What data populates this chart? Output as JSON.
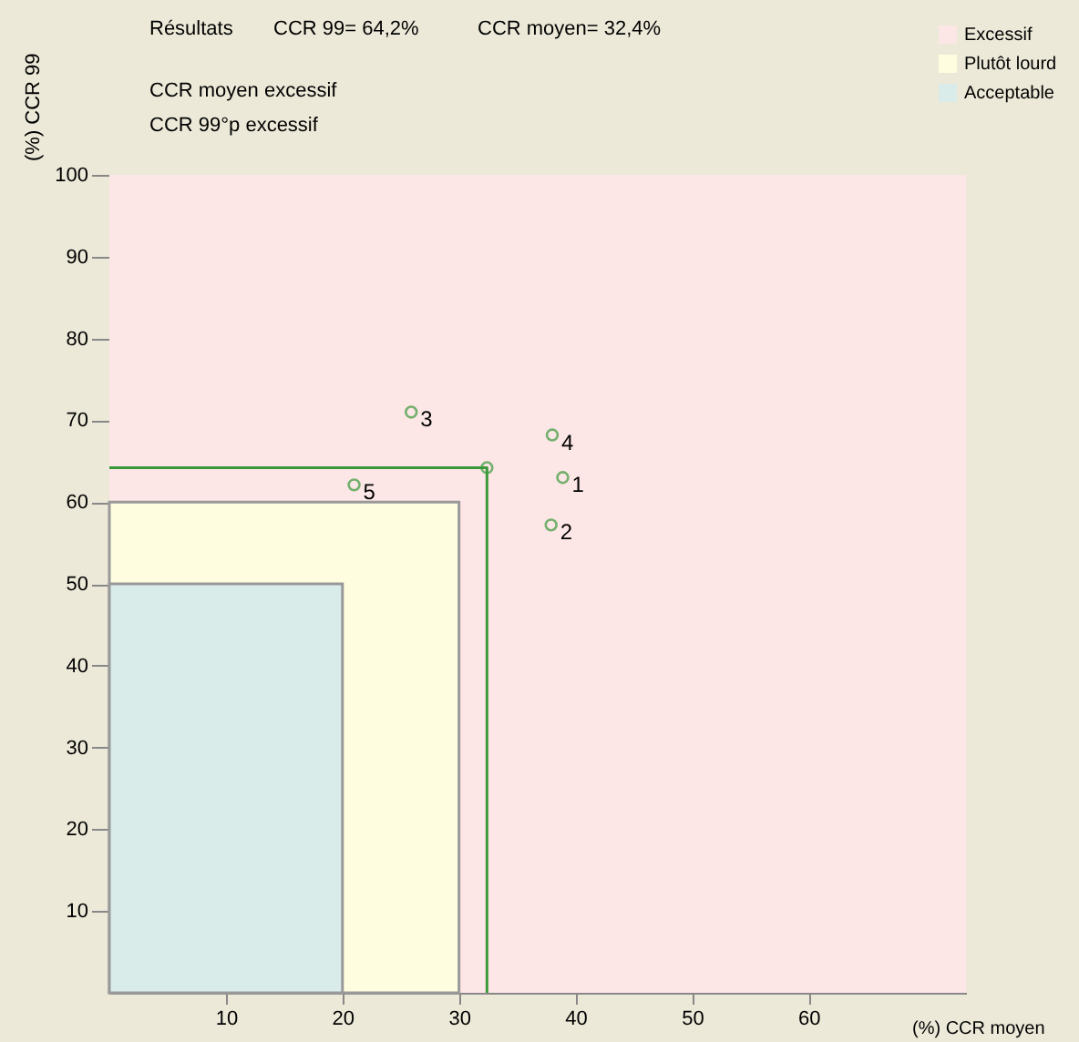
{
  "chart_data": {
    "type": "scatter",
    "title": "Résultats",
    "annotations": [
      "CCR 99= 64,2%",
      "CCR moyen= 32,4%",
      "CCR moyen excessif",
      "CCR 99°p excessif",
      {
        "text": "1",
        "x": 38.9,
        "y": 63
      },
      {
        "text": "2",
        "x": 37.9,
        "y": 57.2
      },
      {
        "text": "3",
        "x": 25.9,
        "y": 71
      },
      {
        "text": "4",
        "x": 38.0,
        "y": 68.2
      },
      {
        "text": "5",
        "x": 21.0,
        "y": 62.1
      }
    ],
    "xlabel": "(%) CCR moyen",
    "ylabel": "(%) CCR 99",
    "xlim": [
      0,
      73.5
    ],
    "ylim": [
      0,
      100
    ],
    "xticks": [
      10,
      20,
      30,
      40,
      50,
      60
    ],
    "yticks": [
      10,
      20,
      30,
      40,
      50,
      60,
      70,
      80,
      90,
      100
    ],
    "grid": false,
    "legend": "top right",
    "bands": [
      {
        "axis": "y",
        "from": 0,
        "to": 100,
        "label": "Excessif",
        "color": "#fde6e6"
      }
    ],
    "series": [
      {
        "name": "Plutôt lourd",
        "type": "area",
        "color": "#fffde0",
        "x": [
          0,
          30
        ],
        "values": [
          60,
          60
        ]
      },
      {
        "name": "Acceptable",
        "type": "area",
        "color": "#d9ecea",
        "x": [
          0,
          20
        ],
        "values": [
          50,
          50
        ]
      },
      {
        "type": "line",
        "color": "#3a9a3a",
        "x": [
          0,
          32.4,
          32.4
        ],
        "values": [
          64.2,
          64.2,
          0
        ],
        "marker": "none",
        "line_style": "solid"
      },
      {
        "color": "#3a9a3a",
        "x": [
          32.4
        ],
        "values": [
          64.2
        ],
        "marker": "circle"
      },
      {
        "color": "#3a9a3a",
        "x": [
          38.9,
          37.9,
          25.9,
          38.0,
          21.0
        ],
        "values": [
          63,
          57.2,
          71,
          68.2,
          62.1
        ],
        "marker": "circle"
      }
    ]
  }
}
